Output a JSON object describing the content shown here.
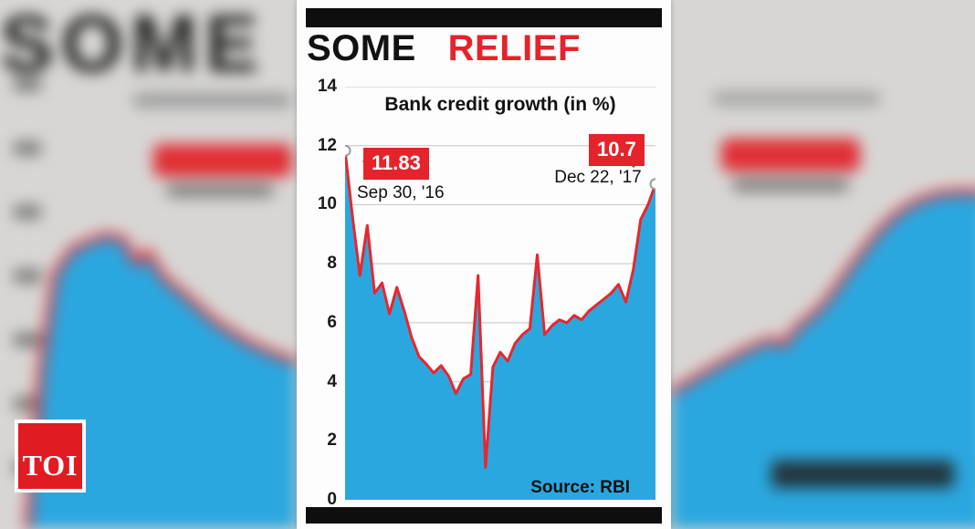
{
  "logo": {
    "text": "TOI"
  },
  "panel": {
    "headline": {
      "part1": "SOME",
      "part2": "RELIEF"
    },
    "source": "Source: RBI"
  },
  "colors": {
    "accent_red": "#e4232b",
    "area_blue": "#2ba7df",
    "bar_black": "#0e0e0e"
  },
  "chart_data": {
    "type": "area",
    "title": "Bank credit growth (in %)",
    "xlabel": "",
    "ylabel": "",
    "ylim": [
      0,
      14
    ],
    "yticks": [
      0,
      2,
      4,
      6,
      8,
      10,
      12,
      14
    ],
    "grid": true,
    "legend": false,
    "colors": {
      "area": "#2ba7df",
      "line": "#e8262d"
    },
    "series": [
      {
        "name": "Bank credit growth (%)",
        "values": [
          11.83,
          9.6,
          7.6,
          9.3,
          7.0,
          7.35,
          6.3,
          7.2,
          6.4,
          5.5,
          4.85,
          4.6,
          4.3,
          4.55,
          4.2,
          3.6,
          4.1,
          4.25,
          7.6,
          1.1,
          4.5,
          5.0,
          4.7,
          5.3,
          5.6,
          5.8,
          8.3,
          5.6,
          5.9,
          6.1,
          6.0,
          6.25,
          6.1,
          6.4,
          6.6,
          6.8,
          7.0,
          7.3,
          6.7,
          7.8,
          9.5,
          10.0,
          10.7
        ]
      }
    ],
    "annotations": [
      {
        "point": "first",
        "value_label": "11.83",
        "date_label": "Sep 30, '16"
      },
      {
        "point": "last",
        "value_label": "10.7",
        "date_label": "Dec 22, '17"
      }
    ]
  }
}
